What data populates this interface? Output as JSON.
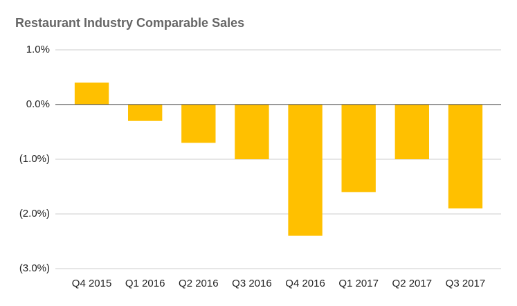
{
  "chart_data": {
    "type": "bar",
    "title": "Restaurant Industry Comparable Sales",
    "categories": [
      "Q4 2015",
      "Q1 2016",
      "Q2 2016",
      "Q3 2016",
      "Q4 2016",
      "Q1 2017",
      "Q2 2017",
      "Q3 2017"
    ],
    "values": [
      0.4,
      -0.3,
      -0.7,
      -1.0,
      -2.4,
      -1.6,
      -1.0,
      -1.9
    ],
    "color": "#ffc000",
    "ylim": [
      -3,
      1
    ],
    "yticks": [
      {
        "value": -3,
        "label": "(3.0%)"
      },
      {
        "value": -2,
        "label": "(2.0%)"
      },
      {
        "value": -1,
        "label": "(1.0%)"
      },
      {
        "value": 0,
        "label": "0.0%"
      },
      {
        "value": 1,
        "label": "1.0%"
      }
    ],
    "grid": true
  }
}
